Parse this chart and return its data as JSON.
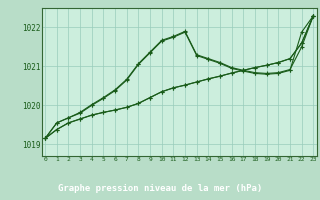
{
  "title": "Graphe pression niveau de la mer (hPa)",
  "background_color": "#b8ddc8",
  "plot_bg_color": "#cceedd",
  "grid_color": "#99ccbb",
  "line_color": "#1a5c1a",
  "border_color": "#336633",
  "x_labels": [
    "0",
    "1",
    "2",
    "3",
    "4",
    "5",
    "6",
    "7",
    "8",
    "9",
    "10",
    "11",
    "12",
    "13",
    "14",
    "15",
    "16",
    "17",
    "18",
    "19",
    "20",
    "21",
    "22",
    "23"
  ],
  "ylim": [
    1018.7,
    1022.5
  ],
  "yticks": [
    1019,
    1020,
    1021,
    1022
  ],
  "series": [
    [
      1019.15,
      1019.38,
      1019.55,
      1019.65,
      1019.75,
      1019.82,
      1019.88,
      1019.95,
      1020.05,
      1020.2,
      1020.35,
      1020.45,
      1020.52,
      1020.6,
      1020.68,
      1020.75,
      1020.83,
      1020.9,
      1020.97,
      1021.03,
      1021.1,
      1021.2,
      1021.6,
      1022.3
    ],
    [
      1019.15,
      1019.55,
      1019.68,
      1019.8,
      1020.0,
      1020.18,
      1020.38,
      1020.65,
      1021.05,
      1021.35,
      1021.65,
      1021.75,
      1021.88,
      1021.28,
      1021.18,
      1021.08,
      1020.95,
      1020.88,
      1020.82,
      1020.8,
      1020.82,
      1020.9,
      1021.88,
      1022.3
    ],
    [
      1019.15,
      1019.55,
      1019.68,
      1019.82,
      1020.02,
      1020.2,
      1020.4,
      1020.67,
      1021.07,
      1021.37,
      1021.67,
      1021.77,
      1021.9,
      1021.3,
      1021.2,
      1021.1,
      1020.97,
      1020.9,
      1020.84,
      1020.82,
      1020.84,
      1020.92,
      1021.5,
      1022.3
    ],
    [
      1019.15,
      1019.38,
      1019.55,
      1019.65,
      1019.75,
      1019.82,
      1019.88,
      1019.95,
      1020.05,
      1020.2,
      1020.35,
      1020.45,
      1020.52,
      1020.6,
      1020.68,
      1020.75,
      1020.83,
      1020.9,
      1020.97,
      1021.03,
      1021.1,
      1021.2,
      1021.6,
      1022.3
    ]
  ]
}
